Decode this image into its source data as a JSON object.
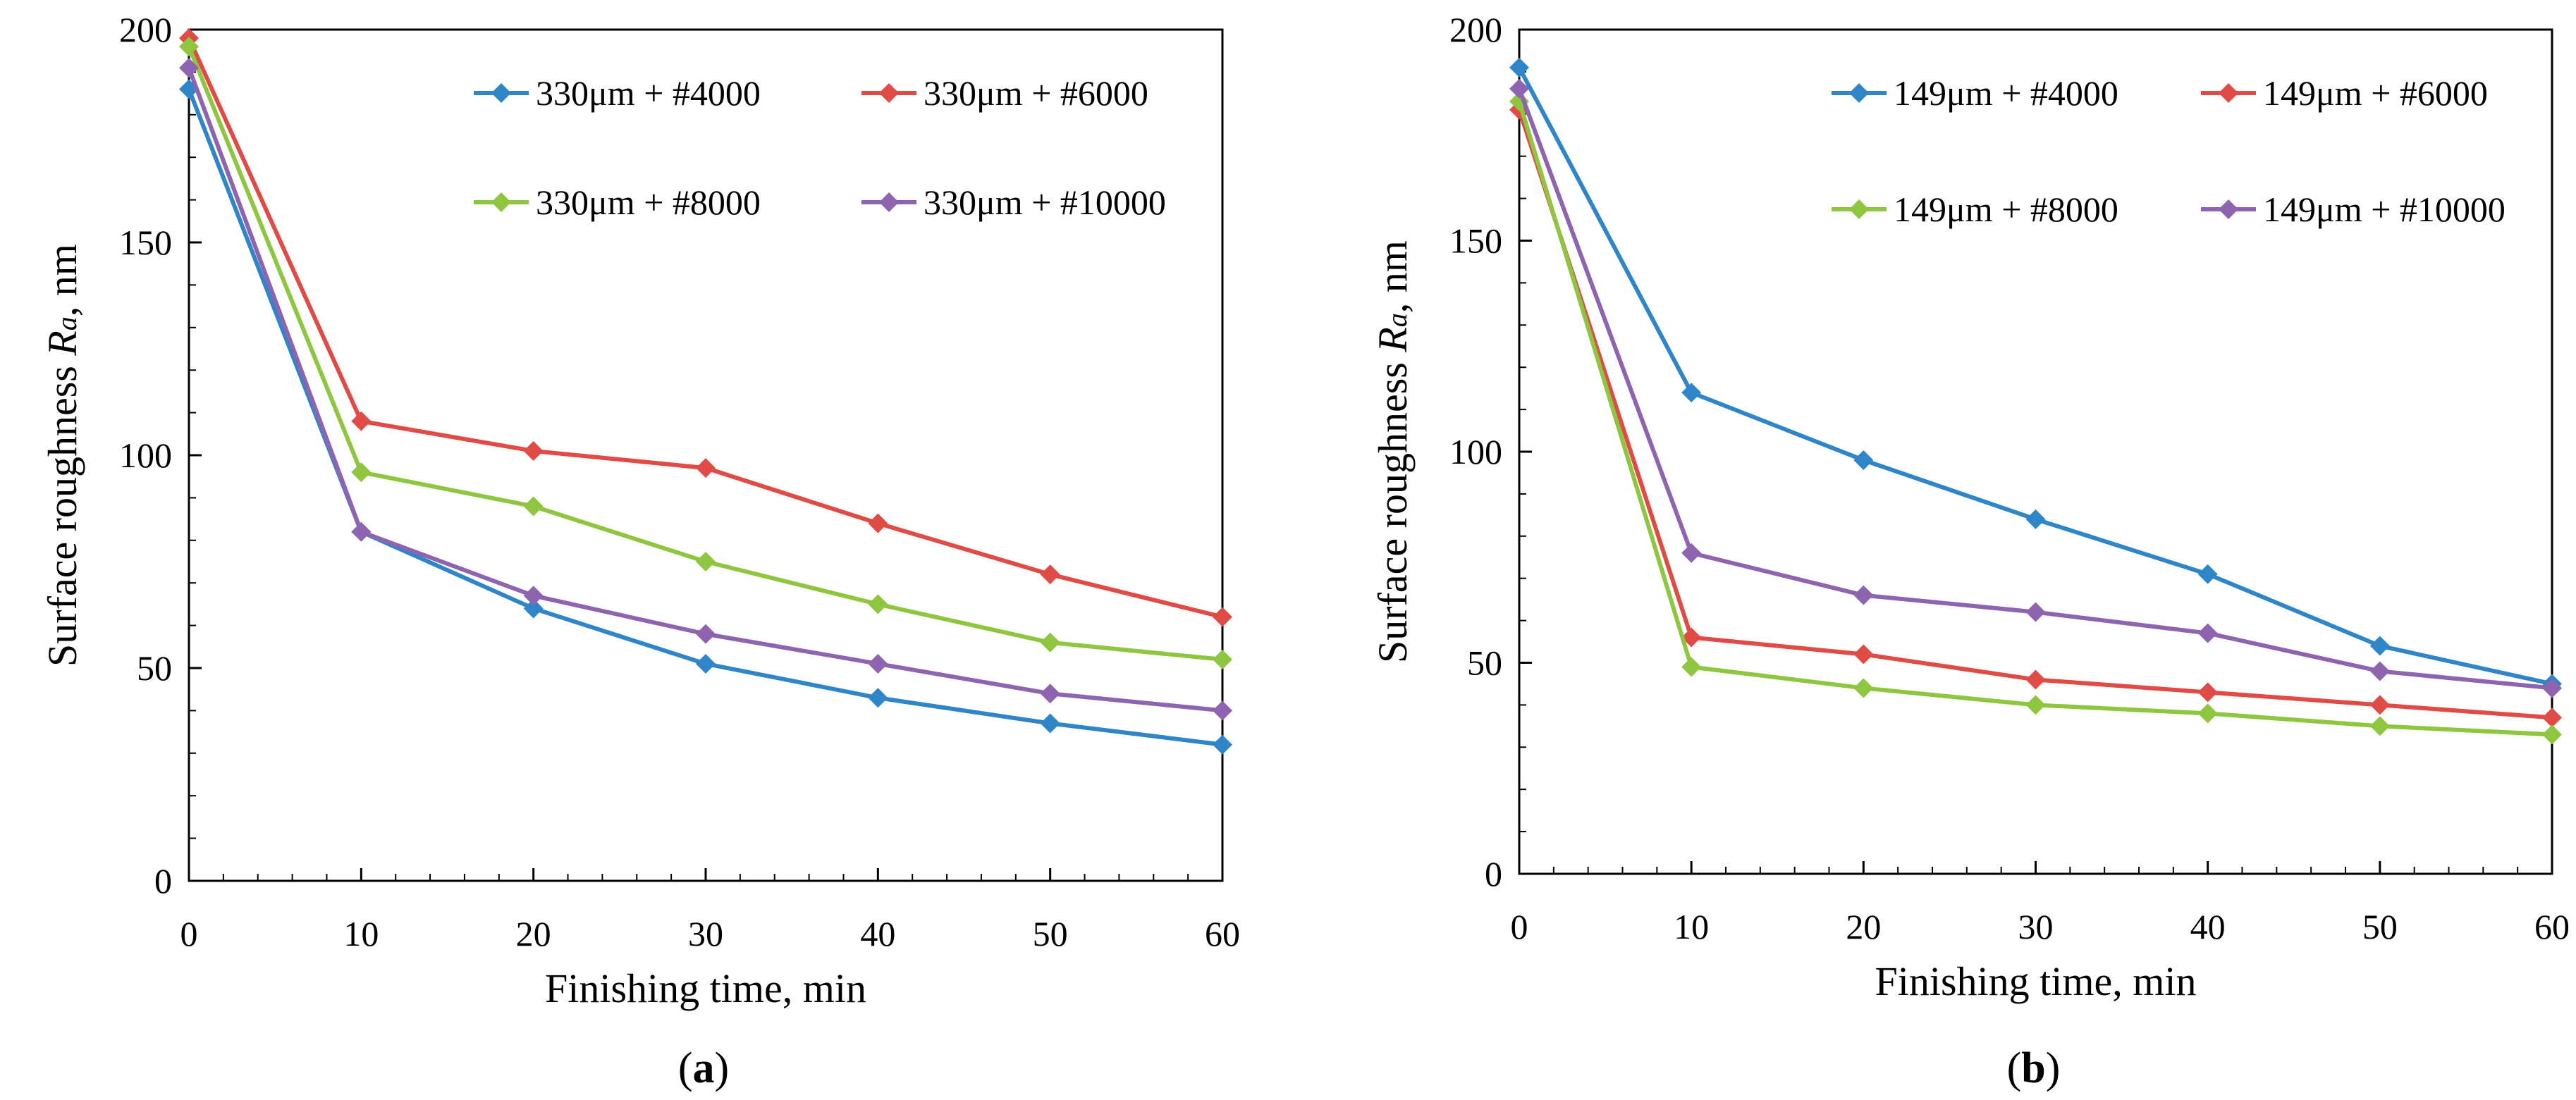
{
  "colors": {
    "series_blue": "#2e86c9",
    "series_red": "#e14b45",
    "series_green": "#8fc640",
    "series_purple": "#8e63b0",
    "axis": "#000000",
    "background": "#ffffff"
  },
  "chart_data": [
    {
      "type": "line",
      "panel_label": "a",
      "xlabel": "Finishing time, min",
      "ylabel_main": "Surface roughness ",
      "ylabel_var": "R",
      "ylabel_sub": "a",
      "ylabel_unit": ",  nm",
      "x": [
        0,
        10,
        20,
        30,
        40,
        50,
        60
      ],
      "xlim": [
        0,
        60
      ],
      "ylim": [
        0,
        200
      ],
      "xticks": [
        0,
        10,
        20,
        30,
        40,
        50,
        60
      ],
      "yticks": [
        0,
        50,
        100,
        150,
        200
      ],
      "xtick_labels": [
        "0",
        "10",
        "20",
        "30",
        "40",
        "50",
        "60"
      ],
      "ytick_labels": [
        "0",
        "50",
        "100",
        "150",
        "200"
      ],
      "grid": false,
      "legend_position": "top-right",
      "series": [
        {
          "name": "330μm + #4000",
          "color": "#2e86c9",
          "values": [
            186,
            82,
            64,
            51,
            43,
            37,
            32
          ]
        },
        {
          "name": "330μm + #6000",
          "color": "#e14b45",
          "values": [
            198,
            108,
            101,
            97,
            84,
            72,
            62
          ]
        },
        {
          "name": "330μm + #8000",
          "color": "#8fc640",
          "values": [
            196,
            96,
            88,
            75,
            65,
            56,
            52
          ]
        },
        {
          "name": "330μm + #10000",
          "color": "#8e63b0",
          "values": [
            191,
            82,
            67,
            58,
            51,
            44,
            40
          ]
        }
      ]
    },
    {
      "type": "line",
      "panel_label": "b",
      "xlabel": "Finishing time, min",
      "ylabel_main": "Surface roughness ",
      "ylabel_var": "R",
      "ylabel_sub": "a",
      "ylabel_unit": ",  nm",
      "x": [
        0,
        10,
        20,
        30,
        40,
        50,
        60
      ],
      "xlim": [
        0,
        60
      ],
      "ylim": [
        0,
        200
      ],
      "xticks": [
        0,
        10,
        20,
        30,
        40,
        50,
        60
      ],
      "yticks": [
        0,
        50,
        100,
        150,
        200
      ],
      "xtick_labels": [
        "0",
        "10",
        "20",
        "30",
        "40",
        "50",
        "60"
      ],
      "ytick_labels": [
        "0",
        "50",
        "100",
        "150",
        "200"
      ],
      "grid": false,
      "legend_position": "top-right",
      "series": [
        {
          "name": "149μm + #4000",
          "color": "#2e86c9",
          "values": [
            191,
            114,
            98,
            84,
            71,
            54,
            45
          ]
        },
        {
          "name": "149μm + #6000",
          "color": "#e14b45",
          "values": [
            181,
            56,
            52,
            46,
            43,
            40,
            37
          ]
        },
        {
          "name": "149μm + #8000",
          "color": "#8fc640",
          "values": [
            183,
            49,
            44,
            40,
            38,
            35,
            33
          ]
        },
        {
          "name": "149μm + #10000",
          "color": "#8e63b0",
          "values": [
            186,
            76,
            66,
            62,
            57,
            48,
            44
          ]
        }
      ]
    }
  ]
}
